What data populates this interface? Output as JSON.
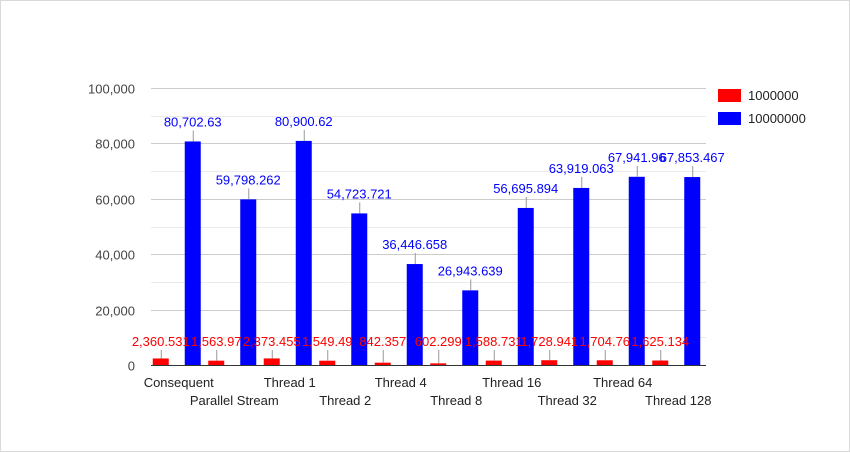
{
  "chart_data": {
    "type": "bar",
    "categories": [
      "Consequent",
      "Parallel Stream",
      "Thread 1",
      "Thread 2",
      "Thread 4",
      "Thread 8",
      "Thread 16",
      "Thread 32",
      "Thread 64",
      "Thread 128"
    ],
    "series": [
      {
        "name": "1000000",
        "color": "#ff0000",
        "values": [
          2360.531,
          1563.97,
          2373.455,
          1549.49,
          842.357,
          602.299,
          1588.731,
          1728.941,
          1704.76,
          1625.134
        ],
        "labels": [
          "2,360.531",
          "1,563.97",
          "2,373.455",
          "1,549.49",
          "842.357",
          "602.299",
          "1,588.731",
          "1,728.941",
          "1,704.76",
          "1,625.134"
        ]
      },
      {
        "name": "10000000",
        "color": "#0000ff",
        "values": [
          80702.63,
          59798.262,
          80900.62,
          54723.721,
          36446.658,
          26943.639,
          56695.894,
          63919.063,
          67941.96,
          67853.467
        ],
        "labels": [
          "80,702.63",
          "59,798.262",
          "80,900.62",
          "54,723.721",
          "36,446.658",
          "26,943.639",
          "56,695.894",
          "63,919.063",
          "67,941.96",
          "67,853.467"
        ]
      }
    ],
    "y_ticks": [
      0,
      20000,
      40000,
      60000,
      80000,
      100000
    ],
    "y_tick_labels": [
      "0",
      "20,000",
      "40,000",
      "60,000",
      "80,000",
      "100,000"
    ],
    "ylim": [
      0,
      100000
    ],
    "title": "",
    "xlabel": "",
    "ylabel": "",
    "grid": true,
    "legend_position": "right"
  }
}
